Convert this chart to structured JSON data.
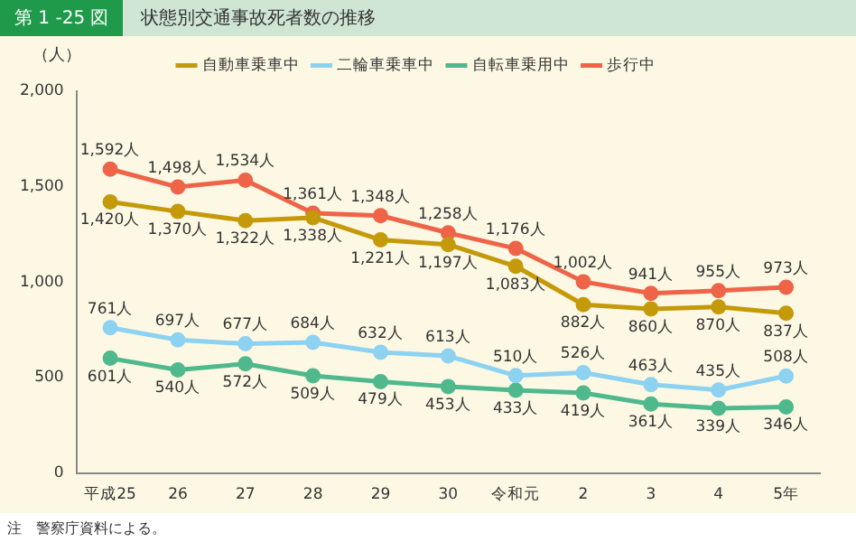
{
  "chart_data": {
    "type": "line",
    "subtitle": "第 1 -25 図",
    "title": "状態別交通事故死者数の推移",
    "ylabel": "（人）",
    "categories": [
      "平成25",
      "26",
      "27",
      "28",
      "29",
      "30",
      "令和元",
      "2",
      "3",
      "4",
      "5年"
    ],
    "series": [
      {
        "name": "自動車乗車中",
        "color": "#c49a0a",
        "values": [
          1420,
          1370,
          1322,
          1338,
          1221,
          1197,
          1083,
          882,
          860,
          870,
          837
        ],
        "value_labels": [
          "1,420人",
          "1,370人",
          "1,322人",
          "1,338人",
          "1,221人",
          "1,197人",
          "1,083人",
          "882人",
          "860人",
          "870人",
          "837人"
        ]
      },
      {
        "name": "二輪車乗車中",
        "color": "#8ed2f2",
        "values": [
          761,
          697,
          677,
          684,
          632,
          613,
          510,
          526,
          463,
          435,
          508
        ],
        "value_labels": [
          "761人",
          "697人",
          "677人",
          "684人",
          "632人",
          "613人",
          "510人",
          "526人",
          "463人",
          "435人",
          "508人"
        ]
      },
      {
        "name": "自転車乗用中",
        "color": "#4fb88c",
        "values": [
          601,
          540,
          572,
          509,
          479,
          453,
          433,
          419,
          361,
          339,
          346
        ],
        "value_labels": [
          "601人",
          "540人",
          "572人",
          "509人",
          "479人",
          "453人",
          "433人",
          "419人",
          "361人",
          "339人",
          "346人"
        ]
      },
      {
        "name": "歩行中",
        "color": "#ee6448",
        "values": [
          1592,
          1498,
          1534,
          1361,
          1348,
          1258,
          1176,
          1002,
          941,
          955,
          973
        ],
        "value_labels": [
          "1,592人",
          "1,498人",
          "1,534人",
          "1,361人",
          "1,348人",
          "1,258人",
          "1,176人",
          "1,002人",
          "941人",
          "955人",
          "973人"
        ]
      }
    ],
    "ylim": [
      0,
      2000
    ],
    "yticks": [
      {
        "value": 0,
        "label": "0"
      },
      {
        "value": 500,
        "label": "500"
      },
      {
        "value": 1000,
        "label": "1,000"
      },
      {
        "value": 1500,
        "label": "1,500"
      },
      {
        "value": 2000,
        "label": "2,000"
      }
    ],
    "grid": false,
    "legend": "top",
    "marker": "circle",
    "line_style": "solid",
    "annotations": [
      "注　警察庁資料による。"
    ]
  }
}
